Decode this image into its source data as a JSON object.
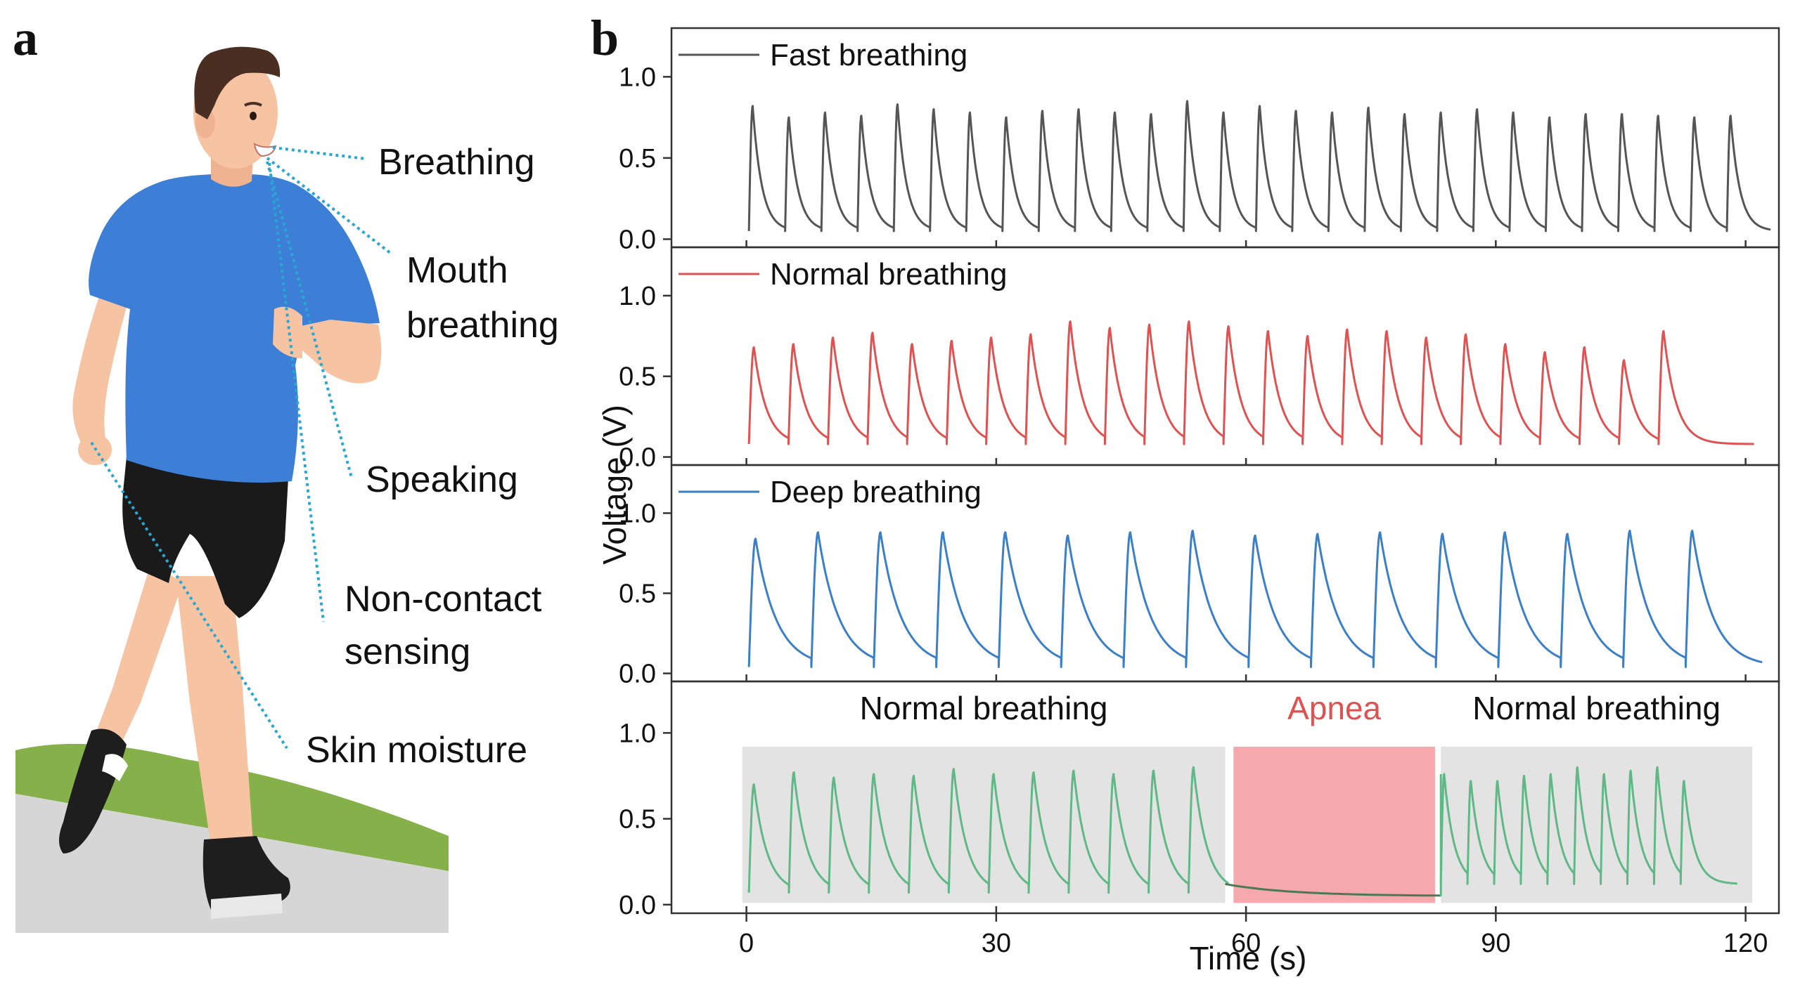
{
  "panel_a": {
    "letter": "a",
    "labels": {
      "breathing": "Breathing",
      "mouth_1": "Mouth",
      "mouth_2": "breathing",
      "speaking": "Speaking",
      "noncontact_1": "Non-contact",
      "noncontact_2": "sensing",
      "skin": "Skin moisture"
    },
    "colors": {
      "skin": "#f6c3a3",
      "shirt": "#3d7fd6",
      "shorts": "#1a1a1a",
      "hair": "#4a2e22",
      "grass": "#86b04a",
      "road": "#d6d6d6",
      "leader": "#29a7d0"
    }
  },
  "panel_b": {
    "letter": "b",
    "ylabel": "Voltage (V)",
    "xlabel": "Time (s)",
    "yticks": [
      "0.0",
      "0.5",
      "1.0"
    ],
    "xticks": [
      "0",
      "30",
      "60",
      "90",
      "120"
    ],
    "legends": [
      "Fast breathing",
      "Normal breathing",
      "Deep breathing"
    ],
    "region_labels": {
      "normal_1": "Normal breathing",
      "apnea": "Apnea",
      "normal_2": "Normal breathing"
    }
  },
  "chart_data": [
    {
      "type": "line",
      "name": "Fast breathing",
      "color": "#555555",
      "xlim": [
        -9,
        124
      ],
      "ylim": [
        -0.05,
        1.3
      ],
      "period": 4.35,
      "rise": 0.45,
      "decay": 1.1,
      "start": 0.3,
      "end": 123,
      "base": 0.05,
      "peaks": [
        0.82,
        0.75,
        0.78,
        0.76,
        0.83,
        0.8,
        0.78,
        0.75,
        0.79,
        0.8,
        0.78,
        0.77,
        0.85,
        0.78,
        0.82,
        0.79,
        0.78,
        0.81,
        0.77,
        0.78,
        0.8,
        0.78,
        0.75,
        0.77,
        0.77,
        0.76,
        0.75,
        0.76
      ]
    },
    {
      "type": "line",
      "name": "Normal breathing",
      "color": "#e05252",
      "xlim": [
        -9,
        124
      ],
      "ylim": [
        -0.05,
        1.3
      ],
      "period": 4.75,
      "rise": 0.6,
      "decay": 1.5,
      "start": 0.3,
      "end": 121,
      "base": 0.08,
      "peaks": [
        0.68,
        0.7,
        0.74,
        0.77,
        0.7,
        0.72,
        0.74,
        0.76,
        0.84,
        0.8,
        0.82,
        0.84,
        0.81,
        0.78,
        0.75,
        0.79,
        0.78,
        0.74,
        0.76,
        0.7,
        0.65,
        0.68,
        0.6,
        0.78
      ]
    },
    {
      "type": "line",
      "name": "Deep breathing",
      "color": "#3b7fc7",
      "xlim": [
        -9,
        124
      ],
      "ylim": [
        -0.05,
        1.3
      ],
      "period": 7.5,
      "rise": 0.8,
      "decay": 2.5,
      "start": 0.3,
      "end": 122,
      "base": 0.04,
      "peaks": [
        0.84,
        0.88,
        0.88,
        0.88,
        0.88,
        0.86,
        0.88,
        0.89,
        0.86,
        0.87,
        0.88,
        0.87,
        0.88,
        0.87,
        0.89,
        0.89
      ]
    },
    {
      "type": "line",
      "name": "",
      "color": "#5fb886",
      "xlim": [
        -9,
        124
      ],
      "ylim": [
        -0.05,
        1.3
      ],
      "segments": [
        {
          "start": 0.3,
          "end": 57.5,
          "period": 4.8,
          "rise": 0.6,
          "decay": 1.6,
          "base": 0.07,
          "peaks": [
            0.7,
            0.77,
            0.74,
            0.76,
            0.75,
            0.79,
            0.76,
            0.77,
            0.78,
            0.76,
            0.78,
            0.8
          ]
        },
        {
          "start": 83.4,
          "end": 119,
          "period": 3.2,
          "rise": 0.4,
          "decay": 1.2,
          "base": 0.12,
          "peaks": [
            0.76,
            0.72,
            0.72,
            0.75,
            0.76,
            0.8,
            0.76,
            0.78,
            0.8,
            0.72
          ]
        }
      ],
      "regions": [
        {
          "label": "Normal breathing",
          "x0": -0.5,
          "x1": 57.5,
          "color": "#e3e3e3"
        },
        {
          "label": "Apnea",
          "x0": 58.5,
          "x1": 82.7,
          "color": "#f6a9ad"
        },
        {
          "label": "Normal breathing",
          "x0": 83.4,
          "x1": 120.8,
          "color": "#e3e3e3"
        }
      ]
    }
  ]
}
